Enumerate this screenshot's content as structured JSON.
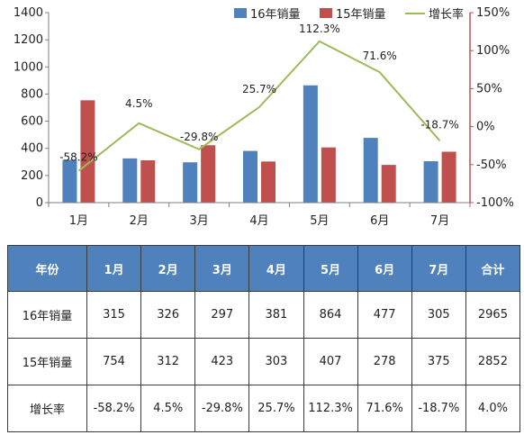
{
  "chart_data": {
    "type": "bar",
    "categories": [
      "1月",
      "2月",
      "3月",
      "4月",
      "5月",
      "6月",
      "7月"
    ],
    "series": [
      {
        "name": "16年销量",
        "type": "bar",
        "axis": "left",
        "color": "#4f81bd",
        "values": [
          315,
          326,
          297,
          381,
          864,
          477,
          305
        ]
      },
      {
        "name": "15年销量",
        "type": "bar",
        "axis": "left",
        "color": "#c0504d",
        "values": [
          754,
          312,
          423,
          303,
          407,
          278,
          375
        ]
      },
      {
        "name": "增长率",
        "type": "line",
        "axis": "right",
        "color": "#9bbb59",
        "values": [
          -58.2,
          4.5,
          -29.8,
          25.7,
          112.3,
          71.6,
          -18.7
        ],
        "labels": [
          "-58.2%",
          "4.5%",
          "-29.8%",
          "25.7%",
          "112.3%",
          "71.6%",
          "-18.7%"
        ]
      }
    ],
    "ylim": [
      0,
      1400
    ],
    "yticks": [
      "0",
      "200",
      "400",
      "600",
      "800",
      "1000",
      "1200",
      "1400"
    ],
    "y2lim": [
      -100,
      150
    ],
    "y2ticks": [
      "-100%",
      "-50%",
      "0%",
      "50%",
      "100%",
      "150%"
    ],
    "legend_position": "top-right",
    "grid": false
  },
  "table": {
    "headers": [
      "年份",
      "1月",
      "2月",
      "3月",
      "4月",
      "5月",
      "6月",
      "7月",
      "合计"
    ],
    "rows": [
      [
        "16年销量",
        "315",
        "326",
        "297",
        "381",
        "864",
        "477",
        "305",
        "2965"
      ],
      [
        "15年销量",
        "754",
        "312",
        "423",
        "303",
        "407",
        "278",
        "375",
        "2852"
      ],
      [
        "增长率",
        "-58.2%",
        "4.5%",
        "-29.8%",
        "25.7%",
        "112.3%",
        "71.6%",
        "-18.7%",
        "4.0%"
      ]
    ]
  }
}
